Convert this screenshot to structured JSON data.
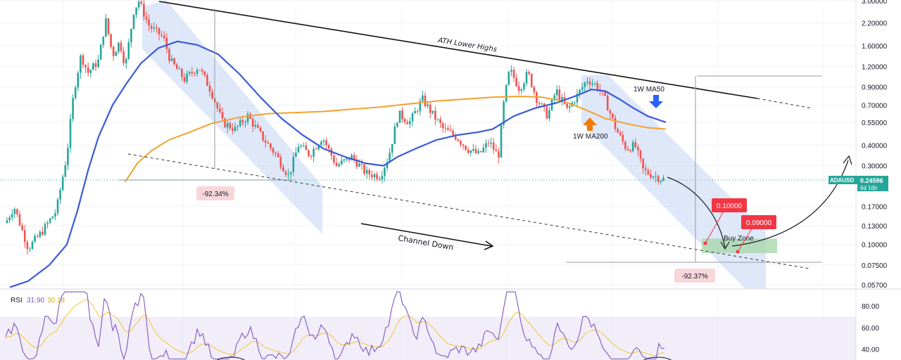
{
  "chart_data": [
    {
      "type": "candlestick",
      "symbol": "ADAUSD",
      "y_scale": "log",
      "ylim": [
        0.05,
        3.05
      ],
      "y_ticks": [
        "3.00000",
        "2.20000",
        "1.60000",
        "1.20000",
        "0.90000",
        "0.70000",
        "0.55000",
        "0.40000",
        "0.30000",
        "0.17000",
        "0.13000",
        "0.10000",
        "0.07500",
        "0.05700"
      ],
      "price_tag": {
        "value": "0.24596",
        "symbol": "ADAUSD",
        "countdown": "6d 16h",
        "color": "#26a69a"
      },
      "series": [
        {
          "name": "1W MA50",
          "color": "#3a5bd9"
        },
        {
          "name": "1W MA200",
          "color": "#f2a22d"
        }
      ],
      "annotations": {
        "resistance_label": "ATH Lower Highs",
        "channel_label": "Channel Down",
        "buy_zone_label": "Buy Zone",
        "ma50_label": "1W MA50",
        "ma200_label": "1W MA200",
        "drop_1": "-92.34%",
        "drop_2": "-92.37%",
        "target_1": "0.10000",
        "target_2": "0.09000"
      },
      "colors": {
        "up": "#26a69a",
        "down": "#ef5350",
        "channel": "#c9d8f5",
        "buy_zone": "#a5d6a7",
        "target": "#f23645"
      }
    },
    {
      "type": "line",
      "indicator": "RSI",
      "values_display": {
        "rsi": "31.90",
        "signal": "30.18"
      },
      "ylim": [
        30,
        95
      ],
      "y_ticks": [
        "80.00",
        "60.00",
        "40.00"
      ],
      "band": [
        30,
        70
      ],
      "series": [
        {
          "name": "RSI",
          "color": "#7e57c2"
        },
        {
          "name": "RSI MA",
          "color": "#f4c430"
        }
      ]
    }
  ]
}
